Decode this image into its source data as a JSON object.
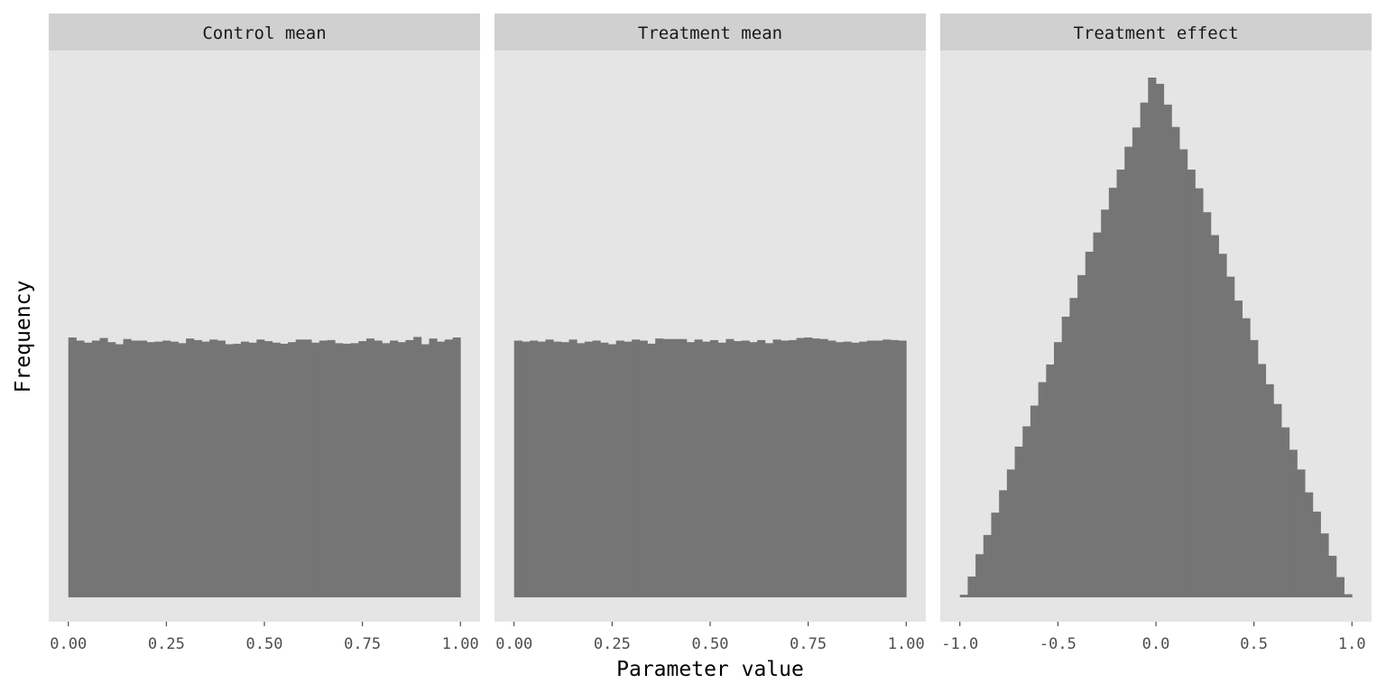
{
  "chart_data": {
    "type": "bar",
    "subtype": "histogram",
    "layout": "facets",
    "xlabel": "Parameter value",
    "ylabel": "Frequency",
    "y_ticks_shown": false,
    "grid": false,
    "colors": {
      "bar": "#757575",
      "panel": "#e5e5e5",
      "strip": "#d0d0d0",
      "tick": "#4d4d4d"
    },
    "facets": [
      {
        "title": "Control mean",
        "xlim": [
          -0.05,
          1.05
        ],
        "xticks": [
          0,
          0.25,
          0.5,
          0.75,
          1
        ],
        "xtick_labels": [
          "0.00",
          "0.25",
          "0.50",
          "0.75",
          "1.00"
        ],
        "bin_range": [
          0,
          1
        ],
        "values": [
          0.5,
          0.494,
          0.49,
          0.494,
          0.499,
          0.491,
          0.487,
          0.497,
          0.494,
          0.494,
          0.491,
          0.492,
          0.494,
          0.492,
          0.489,
          0.498,
          0.495,
          0.492,
          0.496,
          0.494,
          0.487,
          0.488,
          0.492,
          0.49,
          0.496,
          0.493,
          0.49,
          0.488,
          0.491,
          0.496,
          0.496,
          0.49,
          0.494,
          0.495,
          0.489,
          0.488,
          0.489,
          0.493,
          0.498,
          0.494,
          0.489,
          0.494,
          0.491,
          0.495,
          0.501,
          0.487,
          0.498,
          0.492,
          0.496,
          0.5
        ]
      },
      {
        "title": "Treatment mean",
        "xlim": [
          -0.05,
          1.05
        ],
        "xticks": [
          0,
          0.25,
          0.5,
          0.75,
          1
        ],
        "xtick_labels": [
          "0.00",
          "0.25",
          "0.50",
          "0.75",
          "1.00"
        ],
        "bin_range": [
          0,
          1
        ],
        "values": [
          0.494,
          0.492,
          0.494,
          0.492,
          0.496,
          0.492,
          0.491,
          0.496,
          0.489,
          0.492,
          0.494,
          0.49,
          0.487,
          0.494,
          0.492,
          0.496,
          0.494,
          0.488,
          0.498,
          0.497,
          0.497,
          0.497,
          0.491,
          0.496,
          0.492,
          0.495,
          0.49,
          0.497,
          0.493,
          0.494,
          0.491,
          0.495,
          0.489,
          0.496,
          0.494,
          0.495,
          0.499,
          0.5,
          0.498,
          0.497,
          0.494,
          0.491,
          0.492,
          0.49,
          0.492,
          0.494,
          0.494,
          0.496,
          0.495,
          0.494
        ]
      },
      {
        "title": "Treatment effect",
        "xlim": [
          -1.1,
          1.1
        ],
        "xticks": [
          -1,
          -0.5,
          0,
          0.5,
          1
        ],
        "xtick_labels": [
          "-1.0",
          "-0.5",
          "0.0",
          "0.5",
          "1.0"
        ],
        "bin_range": [
          -1,
          1
        ],
        "values": [
          0.005,
          0.04,
          0.083,
          0.12,
          0.163,
          0.206,
          0.246,
          0.29,
          0.329,
          0.369,
          0.414,
          0.448,
          0.491,
          0.54,
          0.576,
          0.62,
          0.665,
          0.702,
          0.746,
          0.788,
          0.823,
          0.867,
          0.904,
          0.952,
          1.0,
          0.988,
          0.948,
          0.905,
          0.862,
          0.823,
          0.787,
          0.741,
          0.697,
          0.661,
          0.617,
          0.571,
          0.537,
          0.495,
          0.449,
          0.41,
          0.372,
          0.327,
          0.284,
          0.246,
          0.202,
          0.165,
          0.123,
          0.08,
          0.039,
          0.006
        ]
      }
    ]
  }
}
